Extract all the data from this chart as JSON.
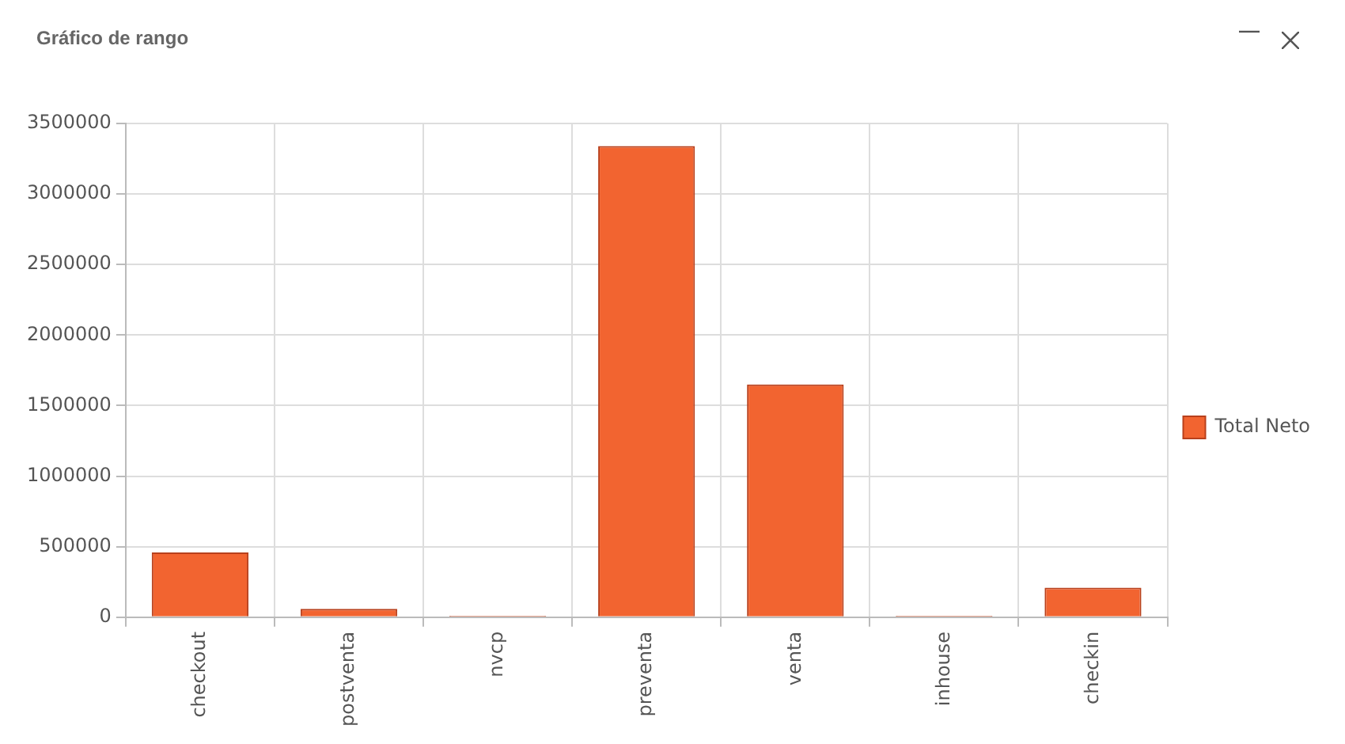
{
  "chart_data": {
    "type": "bar",
    "title": "Gráfico de rango",
    "categories": [
      "checkout",
      "postventa",
      "nvcp",
      "preventa",
      "venta",
      "inhouse",
      "checkin"
    ],
    "series": [
      {
        "name": "Total Neto",
        "color": "#f26430",
        "values": [
          460000,
          60000,
          10000,
          3340000,
          1650000,
          10000,
          210000
        ]
      }
    ],
    "ylim": [
      0,
      3500000
    ],
    "yticks": [
      0,
      500000,
      1000000,
      1500000,
      2000000,
      2500000,
      3000000,
      3500000
    ],
    "grid": true,
    "legend": "right"
  }
}
